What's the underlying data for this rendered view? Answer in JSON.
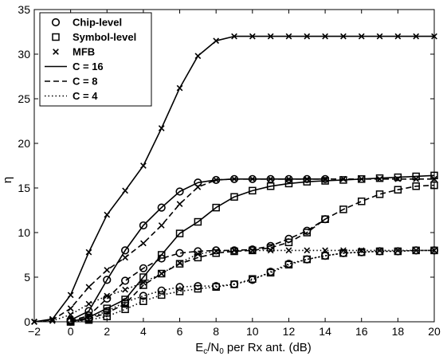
{
  "chart_data": {
    "type": "line",
    "title": "",
    "xlabel_parts": {
      "e": "E",
      "c": "c",
      "slash": "/N",
      "zero": "0",
      "rest": " per Rx ant. (dB)"
    },
    "ylabel": "η",
    "xlim": [
      -2,
      20
    ],
    "ylim": [
      0,
      35
    ],
    "xticks": [
      -2,
      0,
      2,
      4,
      6,
      8,
      10,
      12,
      14,
      16,
      18,
      20
    ],
    "yticks": [
      0,
      5,
      10,
      15,
      20,
      25,
      30,
      35
    ],
    "grid": false,
    "legend_position": "top-left",
    "legend": [
      {
        "label": "Chip-level",
        "marker": "circle",
        "line": "none"
      },
      {
        "label": "Symbol-level",
        "marker": "square",
        "line": "none"
      },
      {
        "label": "MFB",
        "marker": "x",
        "line": "none"
      },
      {
        "label": "C = 16",
        "marker": "none",
        "line": "solid"
      },
      {
        "label": "C = 8",
        "marker": "none",
        "line": "dashed"
      },
      {
        "label": "C = 4",
        "marker": "none",
        "line": "dotted"
      }
    ],
    "series": [
      {
        "method": "MFB",
        "C": 16,
        "marker": "x",
        "line": "solid",
        "x": [
          -2,
          -1,
          0,
          1,
          2,
          3,
          4,
          5,
          6,
          7,
          8,
          9,
          10,
          11,
          12,
          13,
          14,
          15,
          16,
          17,
          18,
          19,
          20
        ],
        "y": [
          0,
          0.3,
          3.0,
          7.8,
          12.0,
          14.7,
          17.5,
          21.7,
          26.2,
          29.8,
          31.5,
          32.0,
          32.0,
          32.0,
          32.0,
          32.0,
          32.0,
          32.0,
          32.0,
          32.0,
          32.0,
          32.0,
          32.0
        ]
      },
      {
        "method": "Chip-level",
        "C": 16,
        "marker": "circle",
        "line": "solid",
        "x": [
          0,
          1,
          2,
          3,
          4,
          5,
          6,
          7,
          8,
          9,
          10,
          11,
          12,
          13,
          14
        ],
        "y": [
          0.2,
          1.2,
          4.7,
          8.0,
          10.8,
          12.8,
          14.6,
          15.6,
          15.9,
          16.0,
          16.0,
          16.0,
          16.0,
          16.0,
          16.0
        ]
      },
      {
        "method": "Symbol-level",
        "C": 16,
        "marker": "square",
        "line": "solid",
        "x": [
          0,
          1,
          2,
          3,
          4,
          5,
          6,
          7,
          8,
          9,
          10,
          11,
          12,
          13,
          14,
          15,
          16,
          17,
          18,
          19,
          20
        ],
        "y": [
          0,
          0.5,
          1.5,
          2.5,
          5.0,
          7.5,
          9.9,
          11.2,
          12.8,
          14.0,
          14.7,
          15.2,
          15.5,
          15.7,
          15.8,
          15.9,
          16.0,
          16.1,
          16.2,
          16.3,
          16.4
        ]
      },
      {
        "method": "MFB",
        "C": 8,
        "marker": "x",
        "line": "dashed",
        "x": [
          -2,
          -1,
          0,
          1,
          2,
          3,
          4,
          5,
          6,
          7,
          8,
          9,
          10,
          11,
          12,
          13,
          14,
          15,
          16,
          17,
          18,
          19,
          20
        ],
        "y": [
          0,
          0.2,
          1.5,
          3.9,
          5.8,
          7.2,
          8.8,
          10.8,
          13.2,
          15.1,
          15.9,
          16.0,
          16.0,
          16.0,
          16.0,
          16.0,
          16.0,
          16.0,
          16.0,
          16.0,
          16.0,
          16.0,
          16.0
        ]
      },
      {
        "method": "Chip-level",
        "C": 8,
        "marker": "circle",
        "line": "dashed",
        "x": [
          0,
          1,
          2,
          3,
          4,
          5,
          6,
          7,
          8,
          9,
          10,
          11,
          12,
          13,
          14
        ],
        "y": [
          0.1,
          0.7,
          2.6,
          4.6,
          6.0,
          7.1,
          7.7,
          7.9,
          8.0,
          8.0,
          8.1,
          8.5,
          9.3,
          10.2,
          11.5
        ]
      },
      {
        "method": "Symbol-level",
        "C": 8,
        "marker": "square",
        "line": "dashed",
        "x": [
          0,
          1,
          2,
          3,
          4,
          5,
          6,
          7,
          8,
          9,
          10,
          11,
          12,
          13,
          14,
          15,
          16,
          17,
          18,
          19,
          20
        ],
        "y": [
          0,
          0.3,
          1.0,
          2.0,
          4.1,
          5.4,
          6.5,
          7.2,
          7.7,
          7.9,
          8.0,
          8.3,
          8.9,
          10.0,
          11.5,
          12.6,
          13.5,
          14.3,
          14.8,
          15.2,
          15.3
        ]
      },
      {
        "method": "MFB",
        "C": 4,
        "marker": "x",
        "line": "dotted",
        "x": [
          -2,
          -1,
          0,
          1,
          2,
          3,
          4,
          5,
          6,
          7,
          8,
          9,
          10,
          11,
          12,
          13,
          14,
          15,
          16,
          17,
          18,
          19,
          20
        ],
        "y": [
          0,
          0.1,
          0.8,
          2.0,
          2.9,
          3.6,
          4.4,
          5.4,
          6.6,
          7.6,
          7.9,
          8.0,
          8.0,
          8.0,
          8.0,
          8.0,
          8.0,
          8.0,
          8.0,
          8.0,
          8.0,
          8.0,
          8.0
        ]
      },
      {
        "method": "Chip-level",
        "C": 4,
        "marker": "circle",
        "line": "dotted",
        "x": [
          0,
          1,
          2,
          3,
          4,
          5,
          6,
          7,
          8,
          9,
          10,
          11,
          12,
          13,
          14,
          15,
          16,
          17,
          18,
          19,
          20
        ],
        "y": [
          0,
          0.4,
          1.2,
          2.2,
          2.9,
          3.5,
          3.9,
          4.0,
          4.0,
          4.2,
          4.7,
          5.6,
          6.5,
          7.0,
          7.4,
          7.7,
          7.8,
          7.9,
          7.9,
          8.0,
          8.0
        ]
      },
      {
        "method": "Symbol-level",
        "C": 4,
        "marker": "square",
        "line": "dotted",
        "x": [
          0,
          1,
          2,
          3,
          4,
          5,
          6,
          7,
          8,
          9,
          10,
          11,
          12,
          13,
          14,
          15,
          16,
          17,
          18,
          19,
          20
        ],
        "y": [
          0,
          0.2,
          0.6,
          1.4,
          2.3,
          3.0,
          3.4,
          3.7,
          3.9,
          4.2,
          4.8,
          5.5,
          6.4,
          7.0,
          7.4,
          7.7,
          7.8,
          7.9,
          7.9,
          8.0,
          8.0
        ]
      }
    ]
  }
}
